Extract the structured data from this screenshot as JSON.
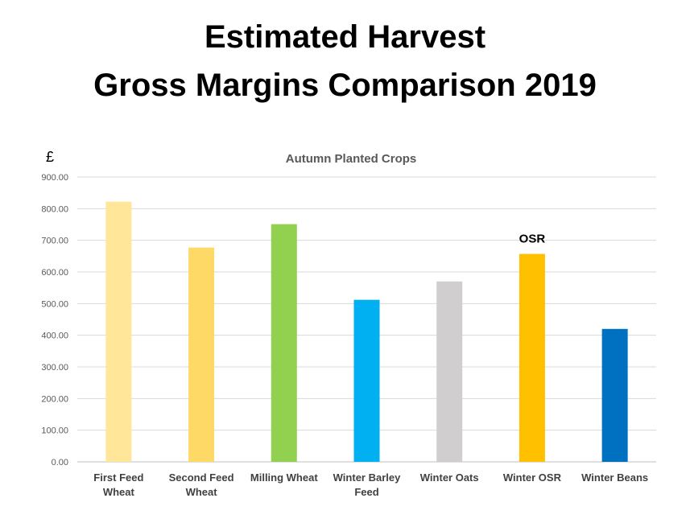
{
  "title_lines": [
    "Estimated Harvest",
    "Gross Margins Comparison 2019"
  ],
  "chart_data": {
    "type": "bar",
    "title": "Autumn Planted Crops",
    "ylabel": "£",
    "xlabel": "",
    "ylim": [
      0,
      900
    ],
    "yticks": [
      "0.00",
      "100.00",
      "200.00",
      "300.00",
      "400.00",
      "500.00",
      "600.00",
      "700.00",
      "800.00",
      "900.00"
    ],
    "grid": true,
    "legend": "none",
    "categories": [
      [
        "First Feed",
        "Wheat"
      ],
      [
        "Second Feed",
        "Wheat"
      ],
      [
        "Milling Wheat"
      ],
      [
        "Winter Barley",
        "Feed"
      ],
      [
        "Winter Oats"
      ],
      [
        "Winter OSR"
      ],
      [
        "Winter Beans"
      ]
    ],
    "values": [
      822,
      677,
      751,
      512,
      570,
      657,
      420
    ],
    "colors": [
      "#FFE699",
      "#FFD966",
      "#92D050",
      "#00B0F0",
      "#D0CECE",
      "#FFC000",
      "#0070C0"
    ],
    "annotations": [
      {
        "category_index": 5,
        "text": "OSR"
      }
    ]
  }
}
